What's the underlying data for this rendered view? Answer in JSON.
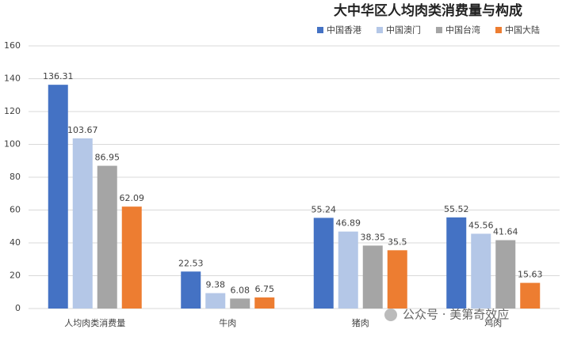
{
  "chart_data": {
    "type": "bar",
    "title": "大中华区人均肉类消费量与构成",
    "categories": [
      "人均肉类消费量",
      "牛肉",
      "猪肉",
      "鸡肉"
    ],
    "series": [
      {
        "name": "中国香港",
        "color": "#4472c4",
        "values": [
          136.31,
          22.53,
          55.24,
          55.52
        ]
      },
      {
        "name": "中国澳门",
        "color": "#b4c7e7",
        "values": [
          103.67,
          9.38,
          46.89,
          45.56
        ]
      },
      {
        "name": "中国台湾",
        "color": "#a5a5a5",
        "values": [
          86.95,
          6.08,
          38.35,
          41.64
        ]
      },
      {
        "name": "中国大陆",
        "color": "#ed7d31",
        "values": [
          62.09,
          6.75,
          35.5,
          15.63
        ]
      }
    ],
    "ylim": [
      0,
      160
    ],
    "yticks": [
      0,
      20,
      40,
      60,
      80,
      100,
      120,
      140,
      160
    ],
    "grid": true,
    "legend": "top",
    "watermark": "公众号 · 美第奇效应"
  }
}
